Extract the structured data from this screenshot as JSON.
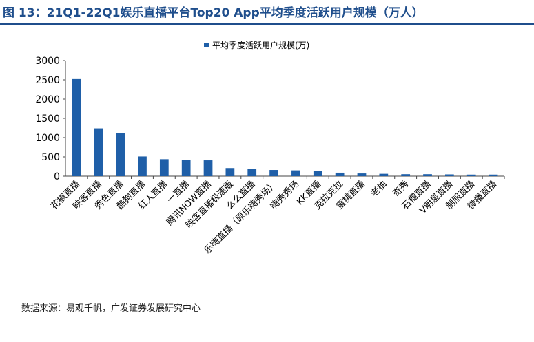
{
  "figure": {
    "title": "图 13：21Q1-22Q1娱乐直播平台Top20 App平均季度活跃用户规模（万人）",
    "source": "数据来源：易观千帆，广发证券发展研究中心"
  },
  "chart_data": {
    "type": "bar",
    "categories": [
      "花椒直播",
      "映客直播",
      "秀色直播",
      "酷狗直播",
      "红人直播",
      "一直播",
      "腾讯NOW直播",
      "映客直播极速版",
      "么么直播",
      "乐嗨直播（原乐嗨秀场）",
      "嗨秀秀场",
      "KK直播",
      "克拉克拉",
      "蜜桃直播",
      "老柚",
      "奇秀",
      "石榴直播",
      "V明星直播",
      "制服直播",
      "微播直播"
    ],
    "series": [
      {
        "name": "平均季度活跃用户规模(万)",
        "values": [
          2520,
          1240,
          1120,
          510,
          440,
          420,
          410,
          210,
          190,
          160,
          150,
          140,
          90,
          70,
          60,
          50,
          50,
          45,
          40,
          40
        ]
      }
    ],
    "ylim": [
      0,
      3000
    ],
    "yticks": [
      0,
      500,
      1000,
      1500,
      2000,
      2500,
      3000
    ],
    "legend_position": "top-left",
    "grid": false,
    "bar_color": "#1f5fa8"
  }
}
